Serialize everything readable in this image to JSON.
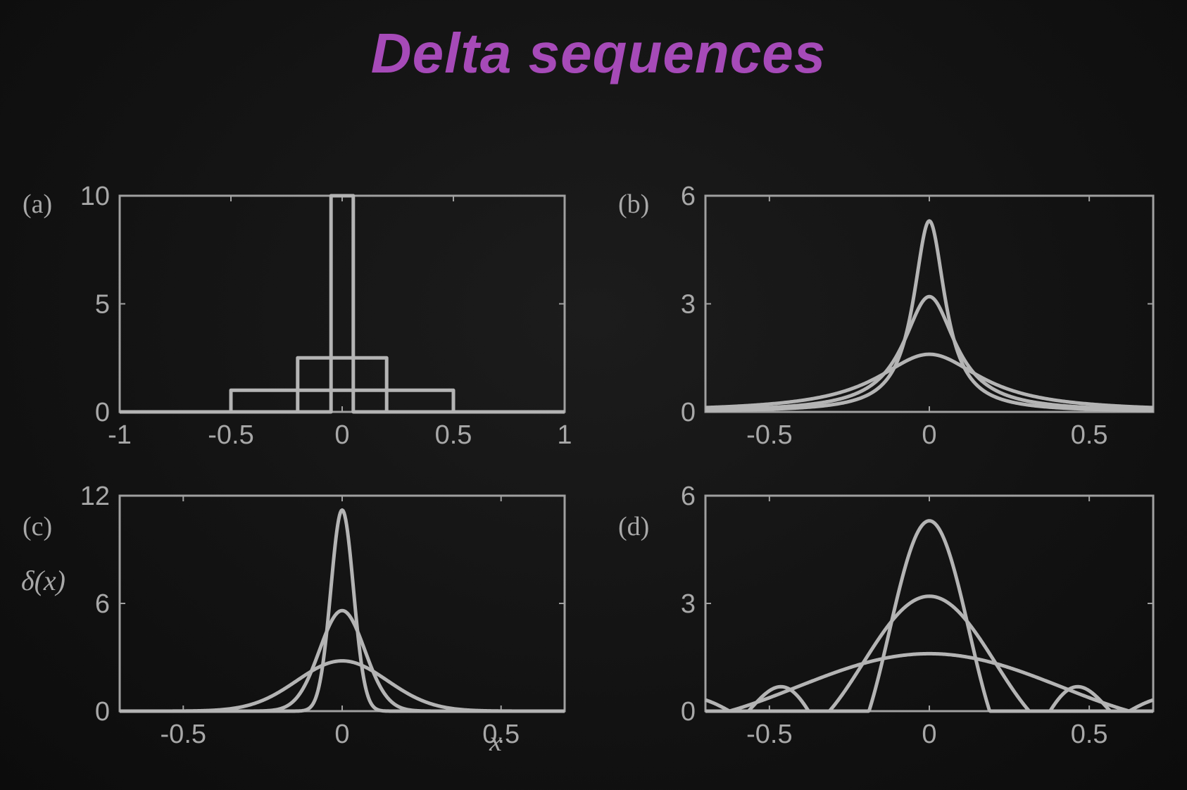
{
  "slide": {
    "title": "Delta sequences",
    "title_color": "#a64ab8"
  },
  "chart_data": [
    {
      "panel_label": "(a)",
      "type": "line",
      "kind": "rect",
      "xlim": [
        -1,
        1
      ],
      "ylim": [
        0,
        10
      ],
      "xticks": [
        -1,
        -0.5,
        0,
        0.5,
        1
      ],
      "xtick_labels": [
        "-1",
        "-0.5",
        "0",
        "0.5",
        "1"
      ],
      "yticks": [
        0,
        5,
        10
      ],
      "ytick_labels": [
        "0",
        "5",
        "10"
      ],
      "xlabel": "",
      "ylabel": "",
      "series": [
        {
          "width": 1,
          "height": 1
        },
        {
          "width": 0.4,
          "height": 2.5
        },
        {
          "width": 0.1,
          "height": 10
        }
      ],
      "grid": false
    },
    {
      "panel_label": "(b)",
      "type": "line",
      "kind": "lorentz",
      "xlim": [
        -0.7,
        0.7
      ],
      "ylim": [
        0,
        6
      ],
      "xticks": [
        -0.5,
        0,
        0.5
      ],
      "xtick_labels": [
        "-0.5",
        "0",
        "0.5"
      ],
      "yticks": [
        0,
        3,
        6
      ],
      "ytick_labels": [
        "0",
        "3",
        "6"
      ],
      "xlabel": "",
      "ylabel": "",
      "series": [
        {
          "peak": 1.6
        },
        {
          "peak": 3.2
        },
        {
          "peak": 5.3
        }
      ],
      "grid": false
    },
    {
      "panel_label": "(c)",
      "type": "line",
      "kind": "gauss",
      "xlim": [
        -0.7,
        0.7
      ],
      "ylim": [
        0,
        12
      ],
      "xticks": [
        -0.5,
        0,
        0.5
      ],
      "xtick_labels": [
        "-0.5",
        "0",
        "0.5"
      ],
      "yticks": [
        0,
        6,
        12
      ],
      "ytick_labels": [
        "0",
        "6",
        "12"
      ],
      "xlabel": "x",
      "ylabel": "δ(x)",
      "series": [
        {
          "peak": 2.8
        },
        {
          "peak": 5.6
        },
        {
          "peak": 11.2
        }
      ],
      "grid": false
    },
    {
      "panel_label": "(d)",
      "type": "line",
      "kind": "sinc",
      "xlim": [
        -0.7,
        0.7
      ],
      "ylim": [
        0,
        6
      ],
      "xticks": [
        -0.5,
        0,
        0.5
      ],
      "xtick_labels": [
        "-0.5",
        "0",
        "0.5"
      ],
      "yticks": [
        0,
        3,
        6
      ],
      "ytick_labels": [
        "0",
        "3",
        "6"
      ],
      "xlabel": "",
      "ylabel": "",
      "series": [
        {
          "peak": 1.6
        },
        {
          "peak": 3.2
        },
        {
          "peak": 5.3
        }
      ],
      "grid": false
    }
  ]
}
